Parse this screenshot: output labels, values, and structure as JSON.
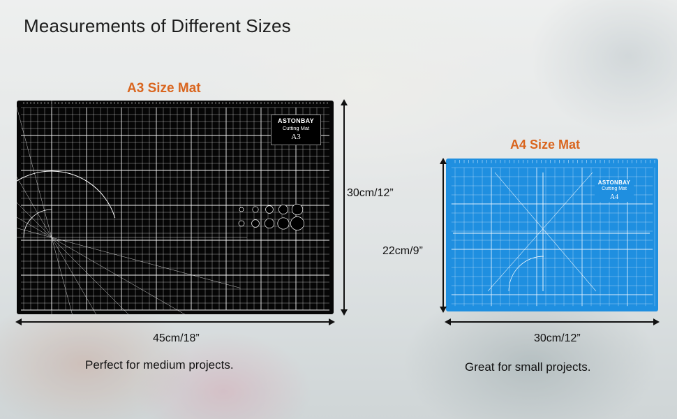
{
  "page": {
    "title": "Measurements of Different Sizes"
  },
  "a3": {
    "title": "A3 Size Mat",
    "height_label": "30cm/12”",
    "width_label": "45cm/18”",
    "caption": "Perfect for medium projects.",
    "brand": "ASTONBAY",
    "brand_sub": "Cutting Mat",
    "size_code": "A3",
    "color": "#060606"
  },
  "a4": {
    "title": "A4 Size Mat",
    "height_label": "22cm/9”",
    "width_label": "30cm/12”",
    "caption": "Great for small projects.",
    "brand": "ASTONBAY",
    "brand_sub": "Cutting Mat",
    "size_code": "A4",
    "color": "#1f8fe0"
  },
  "colors": {
    "accent": "#d9651e",
    "text": "#111111"
  }
}
